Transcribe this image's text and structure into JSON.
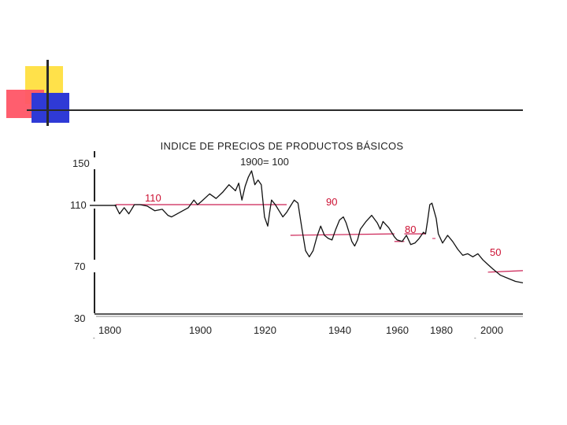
{
  "chart_data": {
    "type": "line",
    "title": "INDICE DE PRECIOS DE PRODUCTOS BÁSICOS",
    "subtitle": "1900= 100",
    "xlabel": "",
    "ylabel": "",
    "grid": false,
    "colors": {
      "line": "#111111",
      "reference": "#cc2255",
      "annotation": "#cc1133",
      "axis": "#222222",
      "text": "#222222"
    },
    "y_ticks": [
      "150",
      "110",
      "70",
      "30"
    ],
    "x_ticks": [
      "1800",
      "1900",
      "1920",
      "1940",
      "1960",
      "1980",
      "2000"
    ],
    "annotations": [
      "110",
      "90",
      "80",
      "50"
    ],
    "series": [
      {
        "values": [
          [
            1805,
            110
          ],
          [
            1810,
            104
          ],
          [
            1815,
            108
          ],
          [
            1820,
            104
          ],
          [
            1826,
            110
          ],
          [
            1832,
            110
          ],
          [
            1840,
            109
          ],
          [
            1848,
            106
          ],
          [
            1856,
            107
          ],
          [
            1862,
            103
          ],
          [
            1866,
            102
          ],
          [
            1872,
            104
          ],
          [
            1878,
            106
          ],
          [
            1884,
            108
          ],
          [
            1890,
            113
          ],
          [
            1894,
            110
          ],
          [
            1898,
            112
          ],
          [
            1902,
            117
          ],
          [
            1904,
            114
          ],
          [
            1906,
            118
          ],
          [
            1908,
            123
          ],
          [
            1910,
            119
          ],
          [
            1911,
            124
          ],
          [
            1912,
            113
          ],
          [
            1913,
            122
          ],
          [
            1914,
            128
          ],
          [
            1915,
            132
          ],
          [
            1916,
            123
          ],
          [
            1917,
            126
          ],
          [
            1918,
            123
          ],
          [
            1919,
            102
          ],
          [
            1920,
            96
          ],
          [
            1920.5,
            105
          ],
          [
            1921,
            113
          ],
          [
            1922,
            110
          ],
          [
            1923,
            106
          ],
          [
            1924,
            102
          ],
          [
            1925,
            105
          ],
          [
            1926,
            109
          ],
          [
            1927,
            113
          ],
          [
            1928,
            111
          ],
          [
            1929,
            95
          ],
          [
            1930,
            80
          ],
          [
            1931,
            76
          ],
          [
            1932,
            80
          ],
          [
            1933,
            89
          ],
          [
            1934,
            96
          ],
          [
            1935,
            90
          ],
          [
            1936,
            88
          ],
          [
            1937,
            87
          ],
          [
            1938,
            94
          ],
          [
            1939,
            100
          ],
          [
            1940,
            102
          ],
          [
            1941,
            98
          ],
          [
            1942,
            92
          ],
          [
            1943,
            86
          ],
          [
            1944,
            83
          ],
          [
            1945,
            87
          ],
          [
            1946,
            94
          ],
          [
            1948,
            99
          ],
          [
            1950,
            103
          ],
          [
            1952,
            98
          ],
          [
            1953,
            94
          ],
          [
            1954,
            99
          ],
          [
            1956,
            95
          ],
          [
            1958,
            89
          ],
          [
            1959,
            87
          ],
          [
            1961,
            86
          ],
          [
            1963,
            90
          ],
          [
            1965,
            84
          ],
          [
            1967,
            85
          ],
          [
            1969,
            88
          ],
          [
            1971,
            92
          ],
          [
            1972,
            91
          ],
          [
            1973,
            100
          ],
          [
            1974,
            110
          ],
          [
            1975,
            111
          ],
          [
            1976,
            106
          ],
          [
            1977,
            101
          ],
          [
            1978,
            91
          ],
          [
            1980,
            85
          ],
          [
            1982,
            90
          ],
          [
            1984,
            86
          ],
          [
            1986,
            81
          ],
          [
            1988,
            77
          ],
          [
            1990,
            78
          ],
          [
            1992,
            76
          ],
          [
            1994,
            78
          ],
          [
            1996,
            74
          ],
          [
            1998,
            71
          ],
          [
            2000,
            68
          ],
          [
            2003,
            64
          ],
          [
            2006,
            62
          ],
          [
            2009,
            60
          ],
          [
            2012,
            59
          ]
        ]
      }
    ],
    "reference_lines": [
      {
        "label": "110",
        "x": [
          1806,
          1925
        ],
        "y": [
          110,
          110
        ]
      },
      {
        "label": "90",
        "x": [
          1926,
          1958
        ],
        "y": [
          90,
          91
        ]
      },
      {
        "label": "80",
        "x": [
          1958,
          1962
        ],
        "y": [
          86,
          86
        ]
      },
      {
        "label": "80",
        "x": [
          1962,
          1972
        ],
        "y": [
          91,
          91
        ]
      },
      {
        "label": "50",
        "x": [
          1998,
          2012
        ],
        "y": [
          66,
          67
        ]
      }
    ]
  }
}
